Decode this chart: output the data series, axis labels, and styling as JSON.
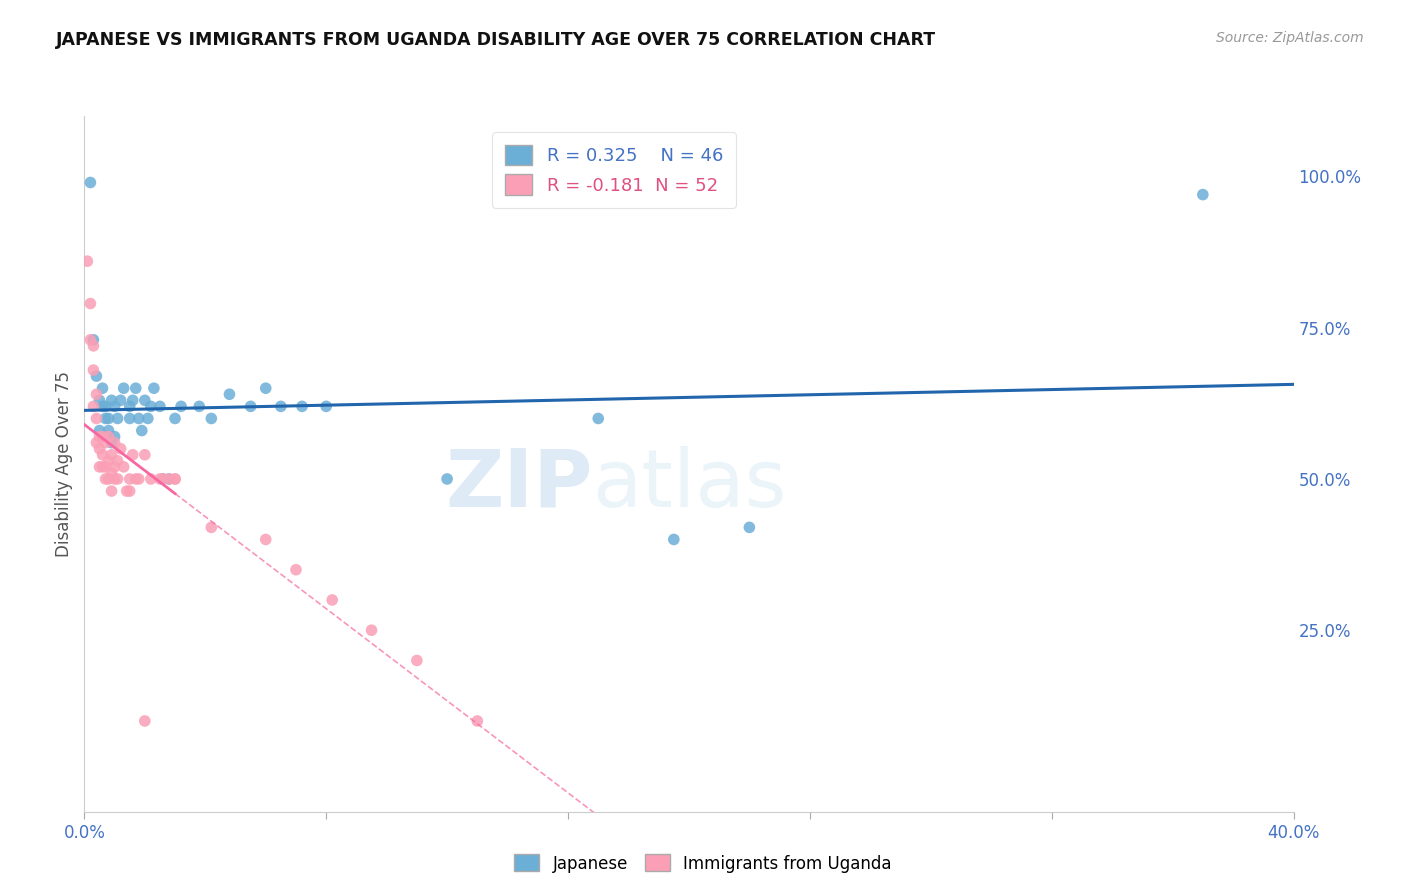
{
  "title": "JAPANESE VS IMMIGRANTS FROM UGANDA DISABILITY AGE OVER 75 CORRELATION CHART",
  "source": "Source: ZipAtlas.com",
  "ylabel": "Disability Age Over 75",
  "xlim": [
    0.0,
    0.4
  ],
  "ylim": [
    -0.05,
    1.1
  ],
  "xticks": [
    0.0,
    0.08,
    0.16,
    0.24,
    0.32,
    0.4
  ],
  "xticklabels": [
    "0.0%",
    "",
    "",
    "",
    "",
    "40.0%"
  ],
  "ytick_right_vals": [
    0.25,
    0.5,
    0.75,
    1.0
  ],
  "ytick_right_labels": [
    "25.0%",
    "50.0%",
    "75.0%",
    "100.0%"
  ],
  "japanese_color": "#6baed6",
  "uganda_color": "#fa9fb5",
  "japanese_line_color": "#2166ac",
  "uganda_line_color": "#f768a1",
  "japanese_R": 0.325,
  "japanese_N": 46,
  "uganda_R": -0.181,
  "uganda_N": 52,
  "watermark_zip": "ZIP",
  "watermark_atlas": "atlas",
  "japanese_x": [
    0.002,
    0.003,
    0.004,
    0.005,
    0.005,
    0.006,
    0.006,
    0.007,
    0.007,
    0.008,
    0.008,
    0.009,
    0.009,
    0.01,
    0.01,
    0.011,
    0.012,
    0.013,
    0.015,
    0.015,
    0.016,
    0.017,
    0.018,
    0.019,
    0.02,
    0.021,
    0.022,
    0.023,
    0.025,
    0.026,
    0.028,
    0.03,
    0.032,
    0.038,
    0.042,
    0.048,
    0.055,
    0.06,
    0.065,
    0.072,
    0.08,
    0.12,
    0.17,
    0.195,
    0.22,
    0.37
  ],
  "japanese_y": [
    0.99,
    0.73,
    0.67,
    0.63,
    0.58,
    0.65,
    0.62,
    0.6,
    0.62,
    0.58,
    0.6,
    0.56,
    0.63,
    0.57,
    0.62,
    0.6,
    0.63,
    0.65,
    0.6,
    0.62,
    0.63,
    0.65,
    0.6,
    0.58,
    0.63,
    0.6,
    0.62,
    0.65,
    0.62,
    0.5,
    0.5,
    0.6,
    0.62,
    0.62,
    0.6,
    0.64,
    0.62,
    0.65,
    0.62,
    0.62,
    0.62,
    0.5,
    0.6,
    0.4,
    0.42,
    0.97
  ],
  "uganda_x": [
    0.001,
    0.002,
    0.002,
    0.003,
    0.003,
    0.003,
    0.004,
    0.004,
    0.004,
    0.005,
    0.005,
    0.005,
    0.006,
    0.006,
    0.006,
    0.007,
    0.007,
    0.007,
    0.008,
    0.008,
    0.008,
    0.009,
    0.009,
    0.009,
    0.01,
    0.01,
    0.01,
    0.011,
    0.011,
    0.012,
    0.013,
    0.014,
    0.015,
    0.015,
    0.016,
    0.017,
    0.018,
    0.02,
    0.022,
    0.025,
    0.026,
    0.028,
    0.03,
    0.03,
    0.042,
    0.06,
    0.07,
    0.082,
    0.095,
    0.11,
    0.13,
    0.02
  ],
  "uganda_y": [
    0.86,
    0.79,
    0.73,
    0.72,
    0.68,
    0.62,
    0.64,
    0.6,
    0.56,
    0.57,
    0.55,
    0.52,
    0.57,
    0.54,
    0.52,
    0.56,
    0.52,
    0.5,
    0.57,
    0.53,
    0.5,
    0.54,
    0.51,
    0.48,
    0.56,
    0.52,
    0.5,
    0.53,
    0.5,
    0.55,
    0.52,
    0.48,
    0.5,
    0.48,
    0.54,
    0.5,
    0.5,
    0.54,
    0.5,
    0.5,
    0.5,
    0.5,
    0.5,
    0.5,
    0.42,
    0.4,
    0.35,
    0.3,
    0.25,
    0.2,
    0.1,
    0.1
  ]
}
